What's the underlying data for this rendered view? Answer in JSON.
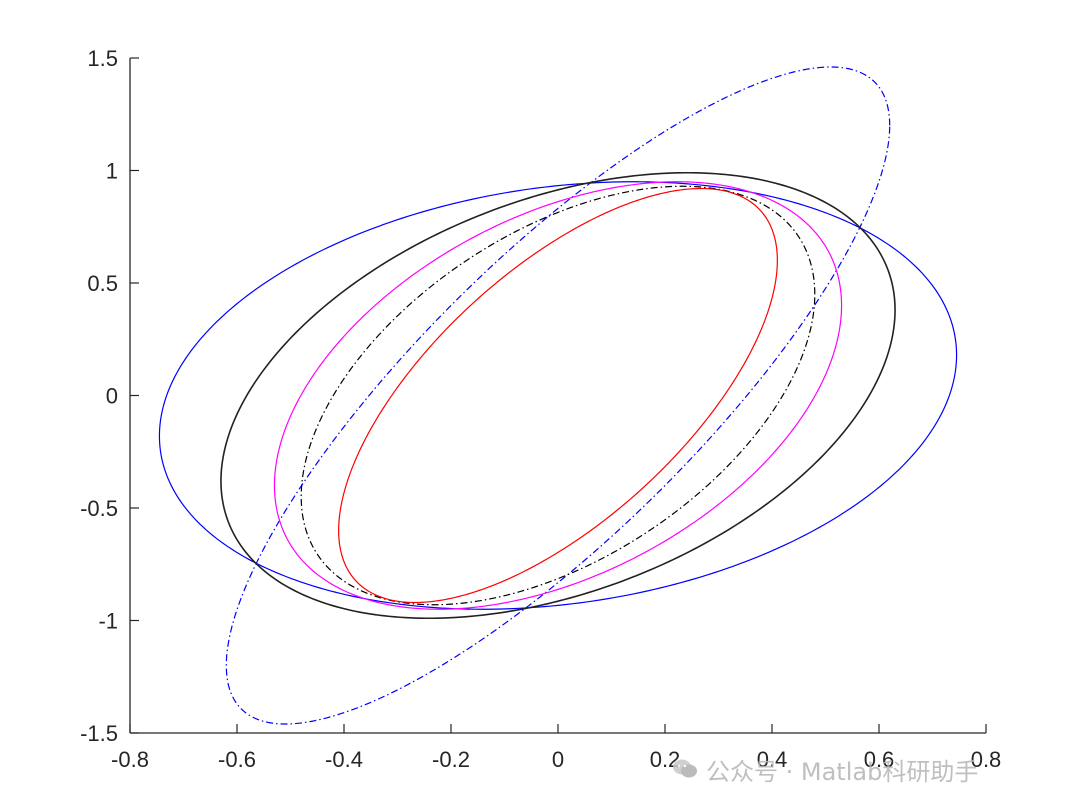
{
  "watermark": {
    "text": "公众号 · Matlab科研助手",
    "icon": "wechat-icon"
  },
  "chart_data": {
    "type": "line",
    "title": "",
    "xlabel": "",
    "ylabel": "",
    "xlim": [
      -0.8,
      0.8
    ],
    "ylim": [
      -1.5,
      1.5
    ],
    "xticks": [
      -0.8,
      -0.6,
      -0.4,
      -0.2,
      0,
      0.2,
      0.4,
      0.6,
      0.8
    ],
    "yticks": [
      -1.5,
      -1,
      -0.5,
      0,
      0.5,
      1,
      1.5
    ],
    "xtick_labels": [
      "-0.8",
      "-0.6",
      "-0.4",
      "-0.2",
      "0",
      "0.2",
      "0.4",
      "0.6",
      "0.8"
    ],
    "ytick_labels": [
      "-1.5",
      "-1",
      "-0.5",
      "0",
      "0.5",
      "1",
      "1.5"
    ],
    "grid": false,
    "box": false,
    "series": [
      {
        "color": "#0000ff",
        "style": "solid",
        "shape": "ellipse",
        "center": [
          0.0,
          0.0
        ],
        "extreme_points": {
          "x_max": [
            0.745,
            0.18
          ],
          "x_min": [
            -0.755,
            -0.18
          ],
          "y_max": [
            0.2,
            0.95
          ],
          "y_min": [
            -0.2,
            -0.95
          ]
        }
      },
      {
        "color": "#0000ff",
        "style": "dashdot",
        "shape": "ellipse",
        "center": [
          0.0,
          0.0
        ],
        "extreme_points": {
          "x_max": [
            0.62,
            1.2
          ],
          "x_min": [
            -0.62,
            -1.2
          ],
          "y_max": [
            0.51,
            1.46
          ],
          "y_min": [
            -0.51,
            -1.46
          ]
        }
      },
      {
        "color": "#222222",
        "style": "solid",
        "shape": "ellipse",
        "center": [
          0.0,
          0.0
        ],
        "extreme_points": {
          "x_max": [
            0.63,
            0.38
          ],
          "x_min": [
            -0.63,
            -0.38
          ],
          "y_max": [
            0.25,
            0.99
          ],
          "y_min": [
            -0.25,
            -0.99
          ]
        }
      },
      {
        "color": "#ff00ff",
        "style": "solid",
        "shape": "ellipse",
        "center": [
          0.0,
          0.0
        ],
        "extreme_points": {
          "x_max": [
            0.53,
            0.4
          ],
          "x_min": [
            -0.53,
            -0.4
          ],
          "y_max": [
            0.28,
            0.95
          ],
          "y_min": [
            -0.28,
            -0.95
          ]
        }
      },
      {
        "color": "#000000",
        "style": "dashdot",
        "shape": "ellipse",
        "center": [
          0.0,
          0.0
        ],
        "extreme_points": {
          "x_max": [
            0.48,
            0.45
          ],
          "x_min": [
            -0.48,
            -0.45
          ],
          "y_max": [
            0.28,
            0.93
          ],
          "y_min": [
            -0.28,
            -0.93
          ]
        }
      },
      {
        "color": "#ff0000",
        "style": "solid",
        "shape": "ellipse",
        "center": [
          0.0,
          0.0
        ],
        "extreme_points": {
          "x_max": [
            0.41,
            0.6
          ],
          "x_min": [
            -0.41,
            -0.6
          ],
          "y_max": [
            0.29,
            0.92
          ],
          "y_min": [
            -0.29,
            -0.92
          ]
        }
      }
    ]
  }
}
